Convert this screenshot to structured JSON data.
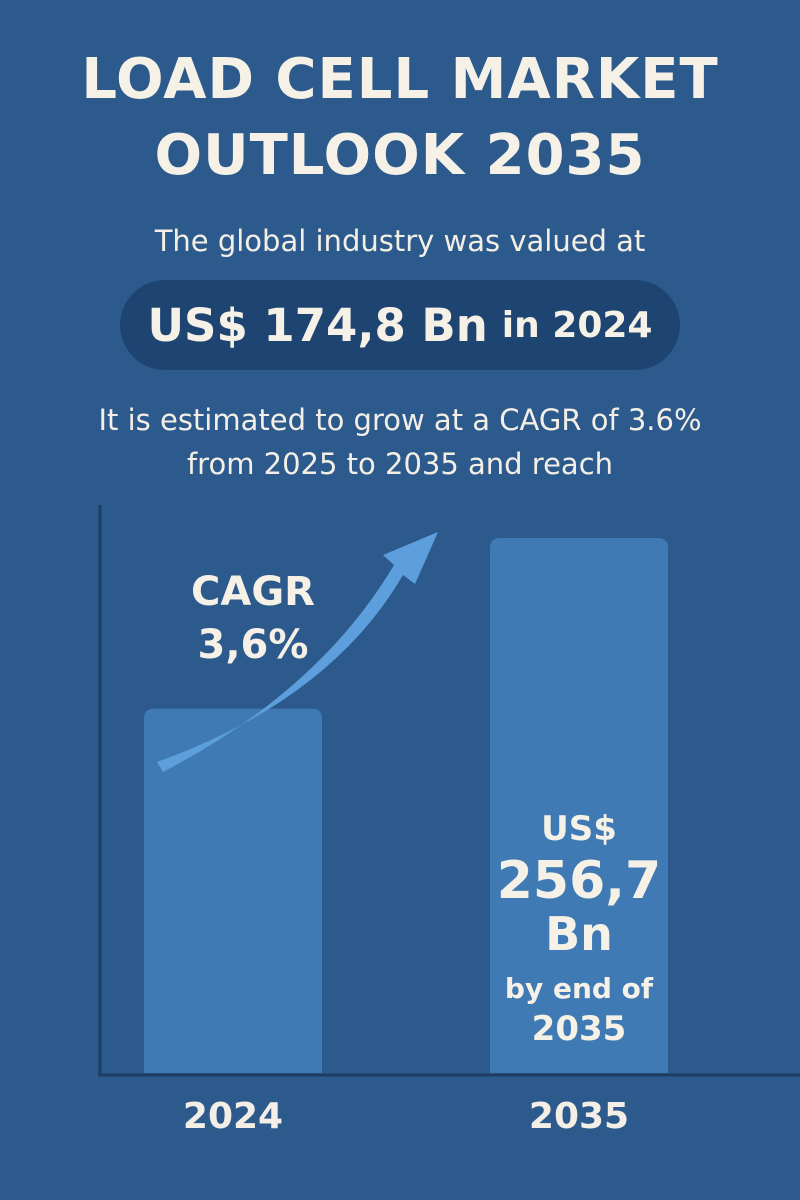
{
  "header": {
    "title_line1": "LOAD CELL MARKET",
    "title_line2": "OUTLOOK 2035",
    "subtitle": "The global industry was valued at"
  },
  "value_pill": {
    "value": "US$ 174,8 Bn",
    "suffix": "in 2024"
  },
  "growth_text": {
    "line1": "It is estimated to grow at a CAGR of 3.6%",
    "line2": "from 2025 to 2035 and reach"
  },
  "cagr_callout": {
    "line1": "CAGR",
    "line2": "3,6%"
  },
  "colors": {
    "background": "#2d5a8c",
    "pill": "#1e4572",
    "bar": "#3f7ab5",
    "arrow": "#5c9fdc",
    "text": "#f3efe6",
    "axis": "#1f3d63"
  },
  "chart_data": {
    "type": "bar",
    "categories": [
      "2024",
      "2035"
    ],
    "values": [
      174.8,
      256.7
    ],
    "unit": "US$ Bn",
    "ylim": [
      0,
      256.7
    ],
    "grid": false,
    "bar_labels": [
      null,
      [
        "US$",
        "256,7",
        "Bn",
        "by end of",
        "2035"
      ]
    ]
  }
}
